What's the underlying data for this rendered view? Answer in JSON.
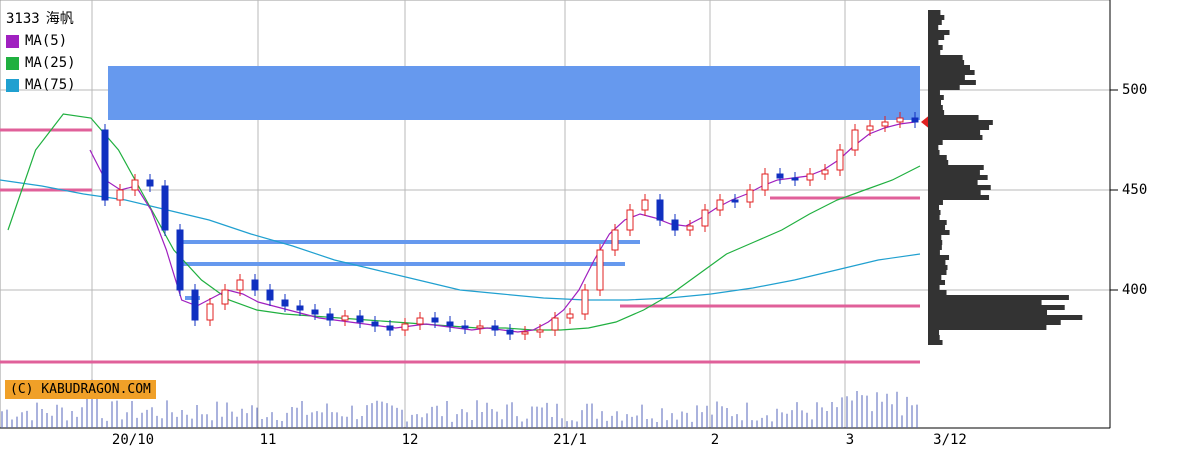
{
  "header": {
    "code": "3133",
    "name": "海帆"
  },
  "legend": [
    {
      "label": "MA(5)",
      "color": "#a020c0"
    },
    {
      "label": "MA(25)",
      "color": "#20b040"
    },
    {
      "label": "MA(75)",
      "color": "#20a0d0"
    }
  ],
  "credit": "(C) KABUDRAGON.COM",
  "colors": {
    "up": "#e02020",
    "down": "#1030c0",
    "resistance_band": "#6699ee",
    "support_line": "#e0609a",
    "grid": "#b8b8b8",
    "volume_profile": "#333333"
  },
  "chart_data": {
    "type": "candlestick",
    "y_axis": {
      "ticks": [
        400,
        450,
        500
      ],
      "range": [
        335,
        545
      ],
      "side": "right"
    },
    "x_axis": {
      "ticks": [
        "20/10",
        "11",
        "12",
        "21/1",
        "2",
        "3",
        "3/12"
      ]
    },
    "last_price": 484,
    "ohlc_close_path": [
      480,
      445,
      450,
      455,
      452,
      430,
      400,
      385,
      393,
      400,
      405,
      400,
      395,
      392,
      390,
      388,
      385,
      387,
      384,
      382,
      380,
      383,
      386,
      384,
      382,
      381,
      382,
      380,
      378,
      379,
      380,
      386,
      388,
      400,
      420,
      430,
      440,
      445,
      435,
      430,
      432,
      440,
      445,
      444,
      450,
      458,
      456,
      455,
      458,
      460,
      470,
      480,
      482,
      484,
      486,
      484
    ],
    "ma_lines": {
      "MA(5)": [
        470,
        455,
        450,
        452,
        440,
        420,
        395,
        392,
        396,
        400,
        398,
        394,
        392,
        390,
        388,
        386,
        385,
        384,
        383,
        382,
        381,
        382,
        383,
        382,
        381,
        380,
        381,
        380,
        379,
        380,
        384,
        390,
        400,
        415,
        428,
        435,
        438,
        436,
        433,
        432,
        436,
        441,
        445,
        448,
        452,
        455,
        456,
        457,
        460,
        465,
        472,
        478,
        481,
        483,
        484
      ],
      "MA(25)": [
        430,
        470,
        488,
        486,
        470,
        445,
        420,
        405,
        395,
        390,
        388,
        387,
        386,
        385,
        384,
        383,
        382,
        381,
        381,
        380,
        380,
        381,
        384,
        390,
        398,
        408,
        418,
        424,
        430,
        438,
        445,
        450,
        455,
        462
      ],
      "MA(75)": [
        455,
        452,
        448,
        445,
        440,
        435,
        428,
        422,
        415,
        410,
        405,
        400,
        398,
        396,
        395,
        395,
        396,
        398,
        401,
        405,
        410,
        415,
        418
      ]
    },
    "resistance_bands": [
      [
        485,
        512
      ]
    ],
    "horizontal_levels": [
      424,
      413,
      396
    ],
    "support_levels": [
      480,
      450,
      446,
      392,
      364
    ]
  }
}
